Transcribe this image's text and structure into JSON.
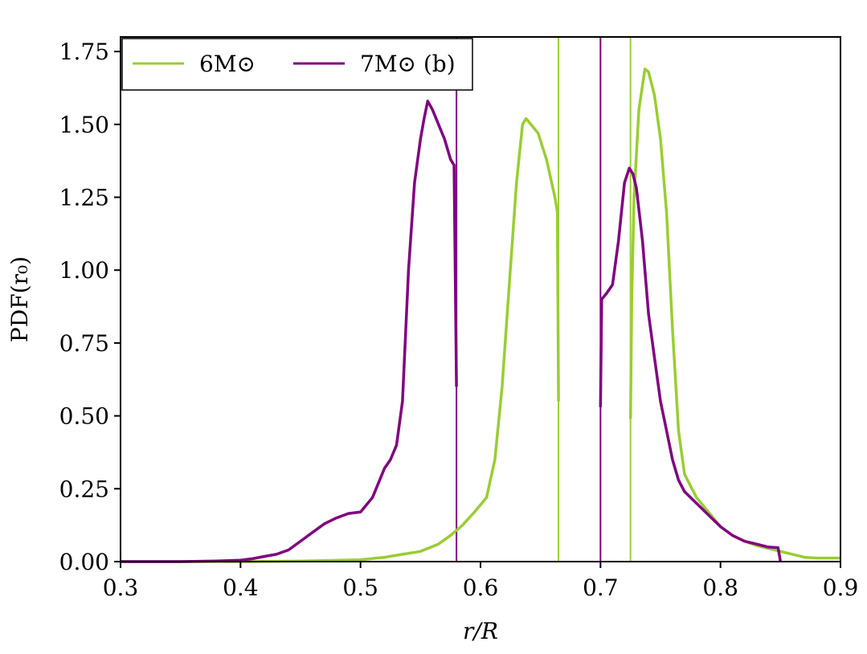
{
  "chart_data": {
    "type": "line",
    "xlabel": "r/R",
    "ylabel": "PDF(r₀)",
    "xlim": [
      0.3,
      0.9
    ],
    "ylim": [
      0.0,
      1.8
    ],
    "xticks": [
      0.3,
      0.4,
      0.5,
      0.6,
      0.7,
      0.8,
      0.9
    ],
    "yticks": [
      0.0,
      0.25,
      0.5,
      0.75,
      1.0,
      1.25,
      1.5,
      1.75
    ],
    "xtick_labels": [
      "0.3",
      "0.4",
      "0.5",
      "0.6",
      "0.7",
      "0.8",
      "0.9"
    ],
    "ytick_labels": [
      "0.00",
      "0.25",
      "0.50",
      "0.75",
      "1.00",
      "1.25",
      "1.50",
      "1.75"
    ],
    "legend": {
      "placement": "upper-left",
      "entries": [
        "6M⊙",
        "7M⊙ (b)"
      ]
    },
    "grid": false,
    "series": [
      {
        "name": "6M⊙",
        "color": "#9acd32",
        "segments": [
          [
            [
              0.3,
              0.0
            ],
            [
              0.4,
              0.0
            ],
            [
              0.45,
              0.002
            ],
            [
              0.5,
              0.006
            ],
            [
              0.52,
              0.015
            ],
            [
              0.535,
              0.025
            ],
            [
              0.55,
              0.035
            ],
            [
              0.565,
              0.06
            ],
            [
              0.575,
              0.09
            ],
            [
              0.585,
              0.125
            ],
            [
              0.595,
              0.17
            ],
            [
              0.605,
              0.22
            ],
            [
              0.612,
              0.35
            ],
            [
              0.618,
              0.6
            ],
            [
              0.624,
              0.95
            ],
            [
              0.63,
              1.3
            ],
            [
              0.635,
              1.5
            ],
            [
              0.638,
              1.52
            ],
            [
              0.642,
              1.5
            ],
            [
              0.648,
              1.47
            ],
            [
              0.655,
              1.38
            ],
            [
              0.662,
              1.25
            ],
            [
              0.664,
              1.2
            ],
            [
              0.665,
              0.55
            ]
          ],
          [
            [
              0.725,
              0.49
            ],
            [
              0.726,
              0.9
            ],
            [
              0.728,
              1.25
            ],
            [
              0.732,
              1.55
            ],
            [
              0.737,
              1.69
            ],
            [
              0.74,
              1.68
            ],
            [
              0.745,
              1.6
            ],
            [
              0.75,
              1.45
            ],
            [
              0.755,
              1.2
            ],
            [
              0.76,
              0.8
            ],
            [
              0.765,
              0.45
            ],
            [
              0.77,
              0.3
            ],
            [
              0.775,
              0.26
            ],
            [
              0.78,
              0.22
            ],
            [
              0.79,
              0.17
            ],
            [
              0.8,
              0.12
            ],
            [
              0.81,
              0.09
            ],
            [
              0.82,
              0.07
            ],
            [
              0.83,
              0.055
            ],
            [
              0.84,
              0.045
            ],
            [
              0.85,
              0.035
            ],
            [
              0.86,
              0.025
            ],
            [
              0.87,
              0.015
            ],
            [
              0.88,
              0.012
            ],
            [
              0.89,
              0.012
            ],
            [
              0.9,
              0.012
            ]
          ]
        ]
      },
      {
        "name": "7M⊙ (b)",
        "color": "#800080",
        "segments": [
          [
            [
              0.3,
              0.0
            ],
            [
              0.35,
              0.0
            ],
            [
              0.38,
              0.002
            ],
            [
              0.4,
              0.005
            ],
            [
              0.41,
              0.01
            ],
            [
              0.42,
              0.018
            ],
            [
              0.43,
              0.025
            ],
            [
              0.44,
              0.04
            ],
            [
              0.45,
              0.07
            ],
            [
              0.46,
              0.1
            ],
            [
              0.47,
              0.13
            ],
            [
              0.48,
              0.15
            ],
            [
              0.49,
              0.165
            ],
            [
              0.5,
              0.17
            ],
            [
              0.51,
              0.22
            ],
            [
              0.52,
              0.32
            ],
            [
              0.525,
              0.35
            ],
            [
              0.53,
              0.4
            ],
            [
              0.535,
              0.55
            ],
            [
              0.54,
              1.0
            ],
            [
              0.545,
              1.3
            ],
            [
              0.55,
              1.45
            ],
            [
              0.553,
              1.52
            ],
            [
              0.556,
              1.58
            ],
            [
              0.56,
              1.55
            ],
            [
              0.565,
              1.5
            ],
            [
              0.57,
              1.45
            ],
            [
              0.575,
              1.38
            ],
            [
              0.578,
              1.36
            ],
            [
              0.58,
              0.6
            ]
          ],
          [
            [
              0.7,
              0.53
            ],
            [
              0.701,
              0.9
            ],
            [
              0.705,
              0.92
            ],
            [
              0.71,
              0.95
            ],
            [
              0.715,
              1.1
            ],
            [
              0.72,
              1.3
            ],
            [
              0.724,
              1.35
            ],
            [
              0.727,
              1.33
            ],
            [
              0.73,
              1.28
            ],
            [
              0.735,
              1.1
            ],
            [
              0.74,
              0.85
            ],
            [
              0.745,
              0.7
            ],
            [
              0.75,
              0.55
            ],
            [
              0.755,
              0.45
            ],
            [
              0.76,
              0.35
            ],
            [
              0.765,
              0.28
            ],
            [
              0.77,
              0.24
            ],
            [
              0.78,
              0.2
            ],
            [
              0.79,
              0.16
            ],
            [
              0.8,
              0.12
            ],
            [
              0.81,
              0.09
            ],
            [
              0.82,
              0.07
            ],
            [
              0.83,
              0.06
            ],
            [
              0.84,
              0.05
            ],
            [
              0.848,
              0.048
            ],
            [
              0.85,
              0.0
            ]
          ]
        ]
      }
    ],
    "vlines": [
      {
        "x": 0.58,
        "series": "7M⊙ (b)",
        "color": "#800080"
      },
      {
        "x": 0.665,
        "series": "6M⊙",
        "color": "#9acd32"
      },
      {
        "x": 0.7,
        "series": "7M⊙ (b)",
        "color": "#800080"
      },
      {
        "x": 0.725,
        "series": "6M⊙",
        "color": "#9acd32"
      }
    ]
  }
}
